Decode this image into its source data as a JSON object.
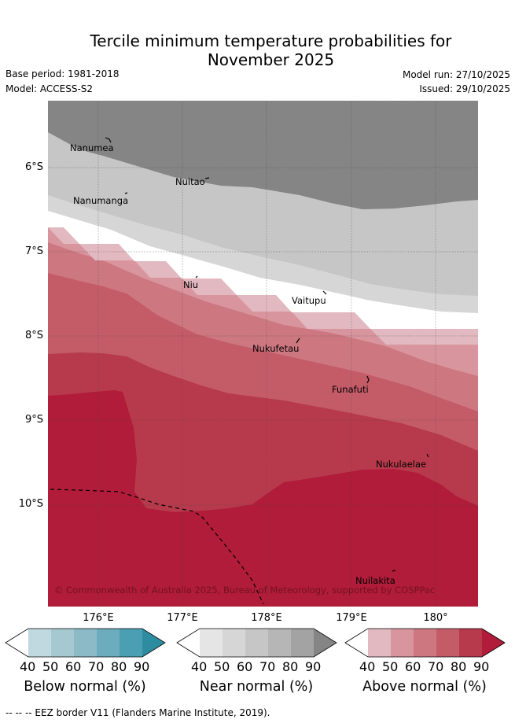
{
  "title": {
    "line1": "Tercile minimum temperature probabilities for",
    "line2": "November 2025"
  },
  "meta": {
    "base_period": "Base period: 1981-2018",
    "model": "Model: ACCESS-S2",
    "model_run": "Model run: 27/10/2025",
    "issued": "Issued: 29/10/2025"
  },
  "map": {
    "lat_labels": [
      "6°S",
      "7°S",
      "8°S",
      "9°S",
      "10°S"
    ],
    "lon_labels": [
      "176°E",
      "177°E",
      "178°E",
      "179°E",
      "180°"
    ],
    "places": [
      "Nanumea",
      "Nuitao",
      "Nanumanga",
      "Niu",
      "Vaitupu",
      "Nukufetau",
      "Funafuti",
      "Nukulaelae",
      "Nuilakita"
    ],
    "copyright": "© Commonwealth of Australia 2025, Bureau of Meteorology, supported by COSPPac"
  },
  "colorbars": {
    "ticks": [
      "40",
      "50",
      "60",
      "70",
      "80",
      "90"
    ],
    "below": {
      "label": "Below normal (%)",
      "colors": [
        "#ffffff",
        "#c0d8df",
        "#a6c9d1",
        "#8cbac6",
        "#6cacbc",
        "#4aa0b2",
        "#2e8ca0"
      ]
    },
    "near": {
      "label": "Near normal (%)",
      "colors": [
        "#ffffff",
        "#e5e5e5",
        "#d6d6d6",
        "#c6c6c6",
        "#b6b6b6",
        "#a3a3a3",
        "#858585"
      ]
    },
    "above": {
      "label": "Above normal (%)",
      "colors": [
        "#ffffff",
        "#e2b9c1",
        "#d8959e",
        "#cd7880",
        "#c45c68",
        "#b73a4c",
        "#b01c39"
      ]
    }
  },
  "footer": "-- -- -- EEZ border V11 (Flanders Marine Institute, 2019)."
}
